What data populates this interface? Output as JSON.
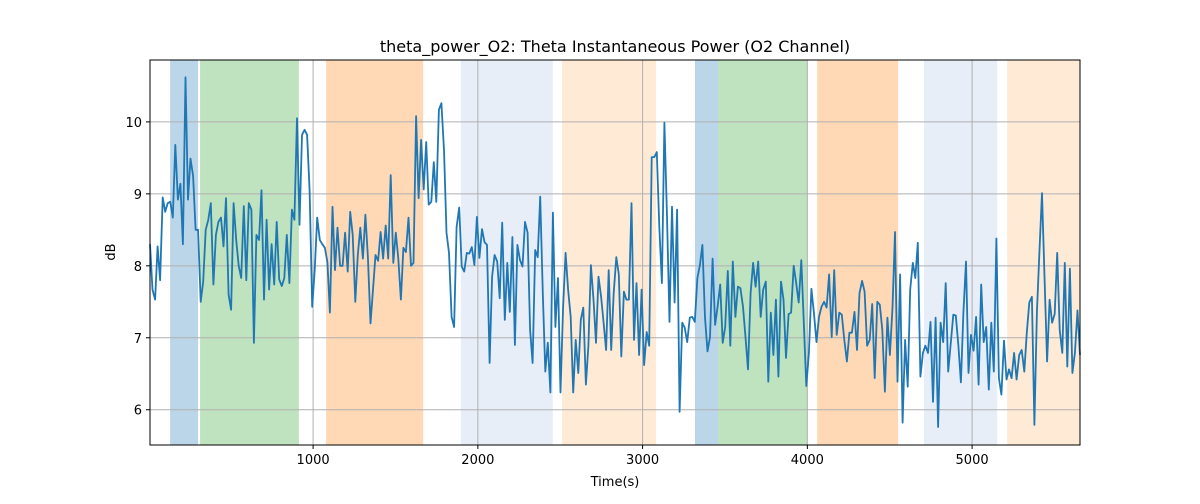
{
  "chart_data": {
    "type": "line",
    "title": "theta_power_O2: Theta Instantaneous Power (O2 Channel)",
    "xlabel": "Time(s)",
    "ylabel": "dB",
    "xlim": [
      10,
      5655
    ],
    "ylim": [
      5.51,
      10.86
    ],
    "xticks": [
      1000,
      2000,
      3000,
      4000,
      5000
    ],
    "yticks": [
      6,
      7,
      8,
      9,
      10
    ],
    "grid": true,
    "line_color": "#1f77b4",
    "shaded_regions": [
      {
        "start": 132,
        "end": 302,
        "color": "#1f77b4"
      },
      {
        "start": 314,
        "end": 914,
        "color": "#2ca02c"
      },
      {
        "start": 1079,
        "end": 1668,
        "color": "#ff7f0e"
      },
      {
        "start": 1897,
        "end": 2455,
        "color": "#aec7e8"
      },
      {
        "start": 2511,
        "end": 3082,
        "color": "#ffbb78"
      },
      {
        "start": 3318,
        "end": 3458,
        "color": "#1f77b4"
      },
      {
        "start": 3458,
        "end": 4000,
        "color": "#2ca02c"
      },
      {
        "start": 4060,
        "end": 4551,
        "color": "#ff7f0e"
      },
      {
        "start": 4708,
        "end": 5152,
        "color": "#aec7e8"
      },
      {
        "start": 5213,
        "end": 5655,
        "color": "#ffbb78"
      }
    ],
    "series": [
      {
        "name": "theta_power_O2",
        "x_range": [
          10,
          5655
        ],
        "values": [
          8.3,
          7.67,
          7.53,
          8.27,
          7.8,
          8.95,
          8.75,
          8.87,
          8.89,
          8.67,
          9.68,
          8.92,
          9.14,
          8.3,
          10.62,
          8.92,
          9.49,
          9.25,
          8.5,
          8.5,
          7.5,
          7.78,
          8.5,
          8.64,
          8.87,
          7.74,
          8.43,
          8.61,
          8.67,
          8.27,
          8.94,
          7.6,
          7.39,
          8.87,
          8.36,
          8.0,
          7.83,
          8.83,
          7.8,
          8.87,
          8.78,
          6.93,
          8.43,
          8.36,
          9.05,
          7.53,
          8.64,
          7.67,
          8.3,
          7.74,
          8.61,
          7.81,
          7.72,
          7.83,
          8.43,
          7.76,
          8.78,
          8.64,
          10.05,
          8.57,
          9.82,
          9.89,
          9.82,
          9.05,
          7.43,
          7.94,
          8.67,
          8.36,
          8.3,
          8.25,
          8.05,
          7.35,
          8.82,
          7.94,
          8.53,
          8.0,
          8.0,
          8.46,
          7.92,
          8.75,
          8.43,
          7.5,
          8.15,
          8.53,
          8.1,
          8.71,
          8.12,
          7.2,
          7.67,
          8.15,
          8.07,
          8.47,
          8.1,
          8.56,
          8.1,
          9.26,
          8.04,
          8.46,
          8.1,
          7.53,
          8.25,
          8.19,
          8.67,
          8.0,
          8.04,
          10.08,
          8.94,
          9.75,
          9.06,
          9.72,
          8.85,
          8.89,
          9.44,
          8.89,
          10.17,
          10.26,
          9.61,
          8.46,
          8.18,
          7.29,
          7.15,
          8.54,
          8.81,
          7.99,
          7.92,
          8.18,
          8.17,
          8.26,
          8.01,
          8.68,
          8.11,
          8.51,
          8.33,
          8.29,
          6.65,
          7.85,
          8.15,
          8.06,
          7.55,
          8.6,
          7.25,
          8.04,
          7.36,
          8.4,
          6.9,
          8.29,
          8.08,
          7.99,
          8.61,
          8.46,
          7.11,
          6.65,
          8.22,
          8.12,
          8.96,
          7.62,
          6.53,
          6.93,
          6.24,
          8.74,
          7.15,
          7.83,
          6.24,
          7.43,
          8.18,
          7.67,
          7.29,
          6.24,
          6.97,
          6.51,
          7.25,
          7.42,
          6.35,
          6.89,
          8.01,
          7.53,
          6.93,
          7.85,
          7.57,
          7.21,
          6.83,
          7.94,
          6.83,
          7.62,
          8.12,
          7.88,
          6.74,
          7.64,
          7.53,
          7.53,
          8.87,
          6.97,
          7.76,
          6.76,
          7.67,
          6.62,
          7.08,
          6.89,
          9.51,
          9.51,
          9.58,
          8.54,
          7.76,
          9.99,
          8.74,
          7.22,
          8.82,
          7.49,
          8.78,
          5.97,
          7.21,
          7.14,
          6.94,
          7.28,
          7.29,
          7.22,
          7.83,
          8.01,
          8.29,
          7.28,
          6.81,
          7.01,
          8.1,
          7.18,
          7.43,
          7.74,
          6.93,
          7.15,
          7.93,
          6.89,
          8.06,
          7.29,
          7.71,
          7.69,
          7.43,
          7.01,
          6.56,
          7.62,
          8.04,
          7.71,
          8.06,
          7.29,
          7.67,
          7.78,
          6.39,
          7.35,
          6.76,
          7.53,
          6.46,
          7.78,
          7.53,
          6.72,
          7.33,
          7.35,
          8.0,
          7.76,
          7.49,
          8.08,
          7.21,
          6.33,
          6.79,
          7.68,
          7.35,
          6.94,
          7.29,
          7.43,
          7.5,
          7.42,
          7.88,
          7.01,
          7.94,
          7.04,
          7.35,
          7.32,
          6.97,
          6.67,
          7.07,
          7.07,
          7.36,
          6.83,
          7.62,
          7.79,
          7.64,
          6.89,
          6.97,
          7.47,
          6.44,
          7.5,
          7.46,
          7.11,
          6.25,
          7.28,
          6.76,
          7.42,
          8.47,
          6.39,
          7.88,
          5.82,
          6.97,
          6.32,
          7.67,
          8.04,
          7.83,
          8.32,
          6.46,
          6.79,
          6.89,
          6.79,
          7.22,
          6.11,
          7.28,
          5.76,
          7.21,
          6.94,
          7.76,
          6.53,
          6.93,
          7.32,
          7.31,
          6.89,
          6.38,
          7.35,
          8.06,
          6.51,
          7.04,
          6.82,
          7.29,
          6.35,
          7.74,
          6.94,
          7.15,
          6.28,
          7.21,
          6.53,
          8.38,
          6.44,
          6.21,
          6.96,
          6.42,
          6.56,
          6.44,
          6.79,
          6.42,
          6.76,
          6.83,
          6.53,
          7.07,
          7.49,
          7.57,
          5.79,
          7.35,
          8.22,
          9.01,
          7.85,
          6.67,
          7.53,
          7.21,
          7.33,
          8.18,
          7.11,
          6.79,
          8.04,
          6.6,
          7.96,
          6.51,
          6.79,
          7.38,
          6.76
        ]
      }
    ]
  }
}
